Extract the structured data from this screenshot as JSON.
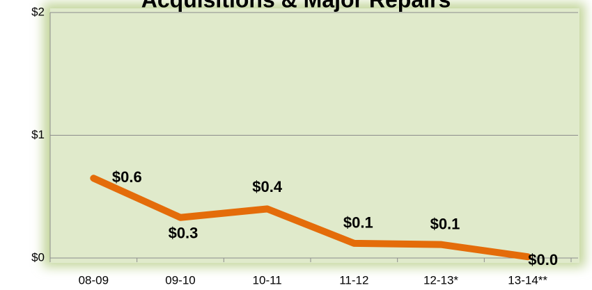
{
  "chart_data": {
    "type": "line",
    "title": "Acquisitions & Major Repairs",
    "categories": [
      "08-09",
      "09-10",
      "10-11",
      "11-12",
      "12-13*",
      "13-14**"
    ],
    "series": [
      {
        "name": "Acquisitions & Major Repairs",
        "color": "#e46c0a",
        "values": [
          0.65,
          0.33,
          0.4,
          0.12,
          0.11,
          0.01
        ],
        "value_labels": [
          "$0.6",
          "$0.3",
          "$0.4",
          "$0.1",
          "$0.1",
          "$0.0"
        ]
      }
    ],
    "ylim": [
      0,
      2
    ],
    "yticks": [
      {
        "value": 0,
        "label": "$0"
      },
      {
        "value": 1,
        "label": "$1"
      },
      {
        "value": 2,
        "label": "$2"
      }
    ],
    "grid": true
  }
}
